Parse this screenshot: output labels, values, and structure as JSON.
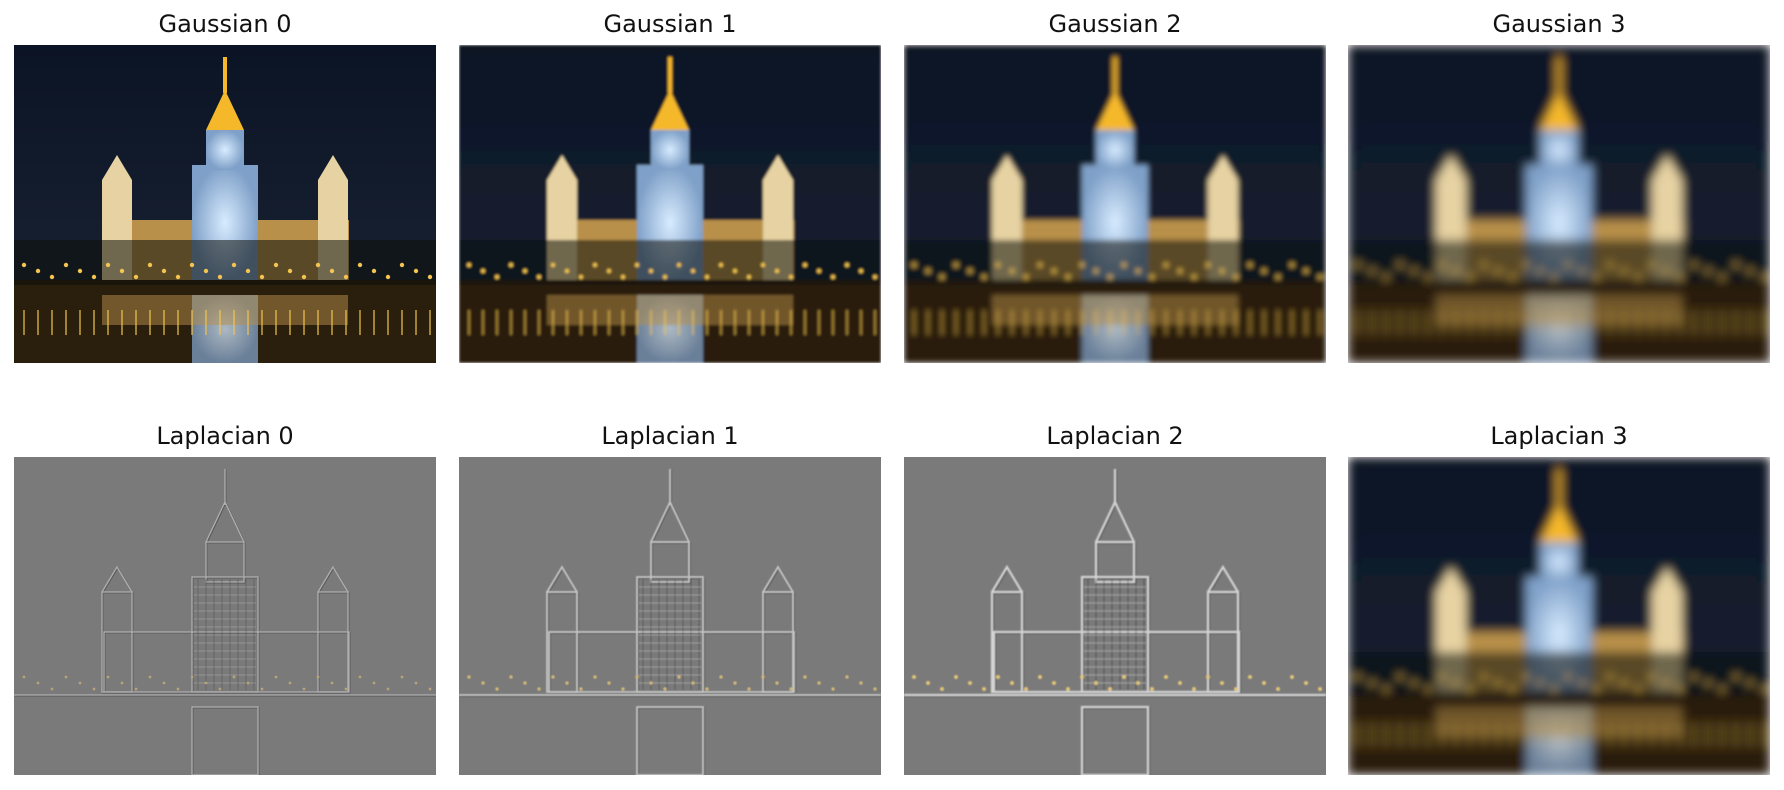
{
  "figure": {
    "rows": [
      {
        "row_name": "gaussian",
        "panels": [
          {
            "title": "Gaussian 0",
            "style": "color",
            "blur": 0
          },
          {
            "title": "Gaussian 1",
            "style": "color",
            "blur": 1.2
          },
          {
            "title": "Gaussian 2",
            "style": "color",
            "blur": 2.6
          },
          {
            "title": "Gaussian 3",
            "style": "color",
            "blur": 5
          }
        ]
      },
      {
        "row_name": "laplacian",
        "panels": [
          {
            "title": "Laplacian 0",
            "style": "edge",
            "blur": 0,
            "strength": 0.35
          },
          {
            "title": "Laplacian 1",
            "style": "edge",
            "blur": 0.4,
            "strength": 0.7
          },
          {
            "title": "Laplacian 2",
            "style": "edge",
            "blur": 0.9,
            "strength": 1
          },
          {
            "title": "Laplacian 3",
            "style": "color",
            "blur": 5
          }
        ]
      }
    ]
  },
  "colors": {
    "sky_top": "#0b1424",
    "sky_bottom": "#1c2536",
    "building_light": "#f3c44f",
    "tower_glow": "#d8ecff",
    "spire": "#f5b82a",
    "trees": "#0d0f0a",
    "ground": "#2a1e0c",
    "laplacian_gray": "#7a7a7a",
    "edge_light": "#d9d9d9",
    "edge_dark": "#3c3c3c"
  }
}
